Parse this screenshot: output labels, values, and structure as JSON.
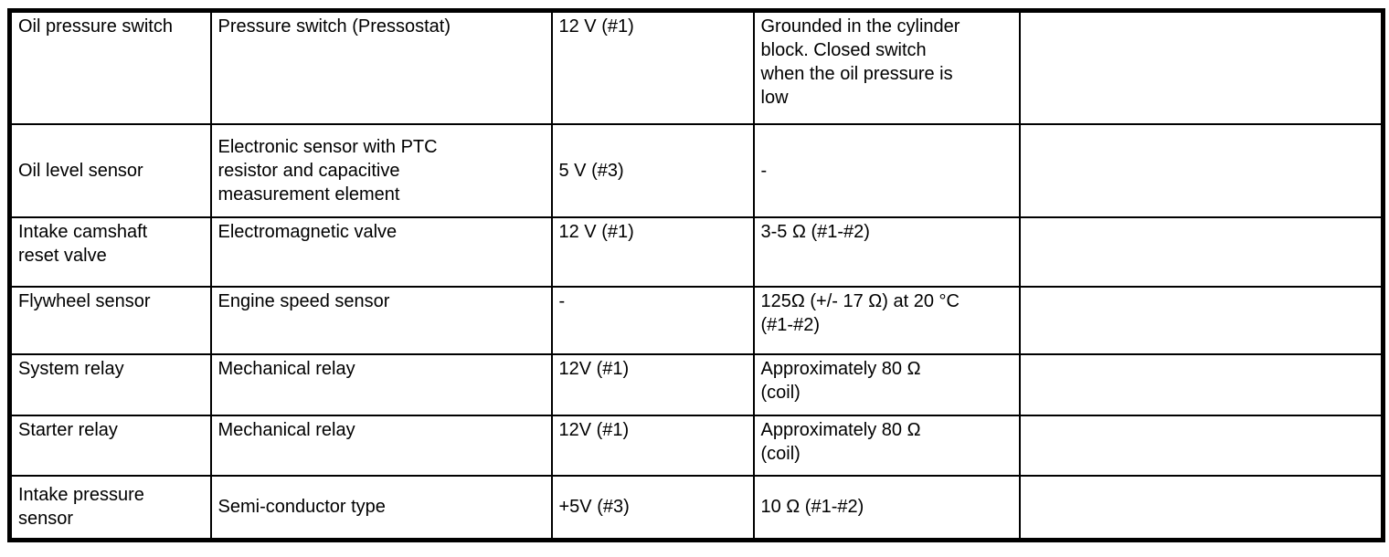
{
  "table": {
    "rows": [
      {
        "cells": [
          "Oil pressure switch",
          "Pressure switch (Pressostat)",
          "12 V (#1)",
          "Grounded in the cylinder\nblock. Closed switch\nwhen the oil pressure is\nlow",
          ""
        ]
      },
      {
        "cells": [
          "Oil level sensor",
          "Electronic sensor with PTC\nresistor and capacitive\nmeasurement element",
          "5 V (#3)",
          "-",
          ""
        ]
      },
      {
        "cells": [
          "Intake camshaft\nreset valve",
          "Electromagnetic valve",
          "12 V (#1)",
          "3-5 Ω (#1-#2)",
          ""
        ]
      },
      {
        "cells": [
          "Flywheel sensor",
          "Engine speed sensor",
          "-",
          "125Ω (+/- 17 Ω) at 20 °C\n(#1-#2)",
          ""
        ]
      },
      {
        "cells": [
          "System relay",
          "Mechanical relay",
          "12V (#1)",
          "Approximately 80 Ω\n(coil)",
          ""
        ]
      },
      {
        "cells": [
          "Starter relay",
          "Mechanical relay",
          "12V (#1)",
          "Approximately 80 Ω\n(coil)",
          ""
        ]
      },
      {
        "cells": [
          "Intake pressure\nsensor",
          "Semi-conductor type",
          "+5V (#3)",
          "10 Ω (#1-#2)",
          ""
        ]
      }
    ]
  }
}
